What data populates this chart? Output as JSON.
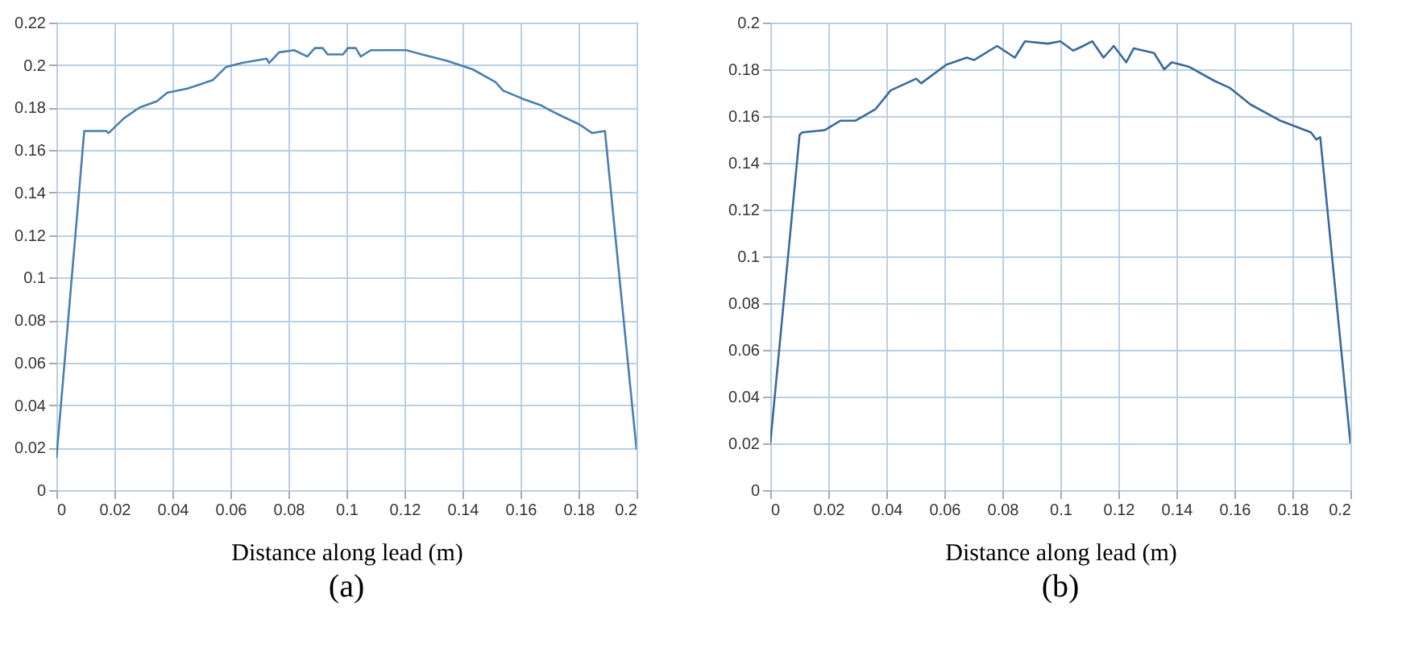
{
  "chart_data": [
    {
      "type": "line",
      "title": "(a)",
      "xlabel": "Distance along lead (m)",
      "xlim": [
        0,
        0.2
      ],
      "xticks": [
        0,
        0.02,
        0.04,
        0.06,
        0.08,
        0.1,
        0.12,
        0.14,
        0.16,
        0.18,
        0.2
      ],
      "ylim": [
        0,
        0.22
      ],
      "yticks": [
        0,
        0.02,
        0.04,
        0.06,
        0.08,
        0.1,
        0.12,
        0.14,
        0.16,
        0.18,
        0.2,
        0.22
      ],
      "grid": true,
      "series": [
        {
          "color": "#4a7fb0",
          "x": [
            0,
            0.0096,
            0.0172,
            0.018,
            0.0233,
            0.0286,
            0.0347,
            0.0382,
            0.0453,
            0.054,
            0.0584,
            0.064,
            0.0725,
            0.0733,
            0.0768,
            0.082,
            0.0865,
            0.0891,
            0.0918,
            0.0935,
            0.0988,
            0.1005,
            0.1032,
            0.1049,
            0.1084,
            0.1154,
            0.1207,
            0.126,
            0.1347,
            0.1435,
            0.1514,
            0.154,
            0.161,
            0.1672,
            0.1698,
            0.1742,
            0.1804,
            0.1847,
            0.1891,
            0.2
          ],
          "values": [
            0.015,
            0.169,
            0.169,
            0.168,
            0.175,
            0.18,
            0.183,
            0.187,
            0.189,
            0.193,
            0.199,
            0.201,
            0.203,
            0.201,
            0.206,
            0.207,
            0.204,
            0.208,
            0.208,
            0.205,
            0.205,
            0.208,
            0.208,
            0.204,
            0.207,
            0.207,
            0.207,
            0.205,
            0.202,
            0.198,
            0.192,
            0.188,
            0.184,
            0.181,
            0.179,
            0.176,
            0.172,
            0.168,
            0.169,
            0.019
          ]
        }
      ]
    },
    {
      "type": "line",
      "title": "(b)",
      "xlabel": "Distance along lead (m)",
      "xlim": [
        0,
        0.2
      ],
      "xticks": [
        0,
        0.02,
        0.04,
        0.06,
        0.08,
        0.1,
        0.12,
        0.14,
        0.16,
        0.18,
        0.2
      ],
      "ylim": [
        0,
        0.2
      ],
      "yticks": [
        0,
        0.02,
        0.04,
        0.06,
        0.08,
        0.1,
        0.12,
        0.14,
        0.16,
        0.18,
        0.2
      ],
      "grid": true,
      "series": [
        {
          "color": "#3a6a9a",
          "x": [
            0,
            0.0101,
            0.011,
            0.0188,
            0.0241,
            0.0293,
            0.0363,
            0.0415,
            0.0503,
            0.052,
            0.0607,
            0.0677,
            0.0703,
            0.0782,
            0.0843,
            0.0878,
            0.0956,
            0.1,
            0.1044,
            0.1079,
            0.111,
            0.1149,
            0.1184,
            0.1227,
            0.1253,
            0.1323,
            0.1358,
            0.1384,
            0.1445,
            0.1532,
            0.1585,
            0.1655,
            0.1759,
            0.1864,
            0.1882,
            0.1896,
            0.2
          ],
          "values": [
            0.02,
            0.152,
            0.153,
            0.154,
            0.158,
            0.158,
            0.163,
            0.171,
            0.176,
            0.174,
            0.182,
            0.185,
            0.184,
            0.19,
            0.185,
            0.192,
            0.191,
            0.192,
            0.188,
            0.19,
            0.192,
            0.185,
            0.19,
            0.183,
            0.189,
            0.187,
            0.18,
            0.183,
            0.181,
            0.175,
            0.172,
            0.165,
            0.158,
            0.153,
            0.15,
            0.151,
            0.02
          ]
        }
      ]
    }
  ]
}
